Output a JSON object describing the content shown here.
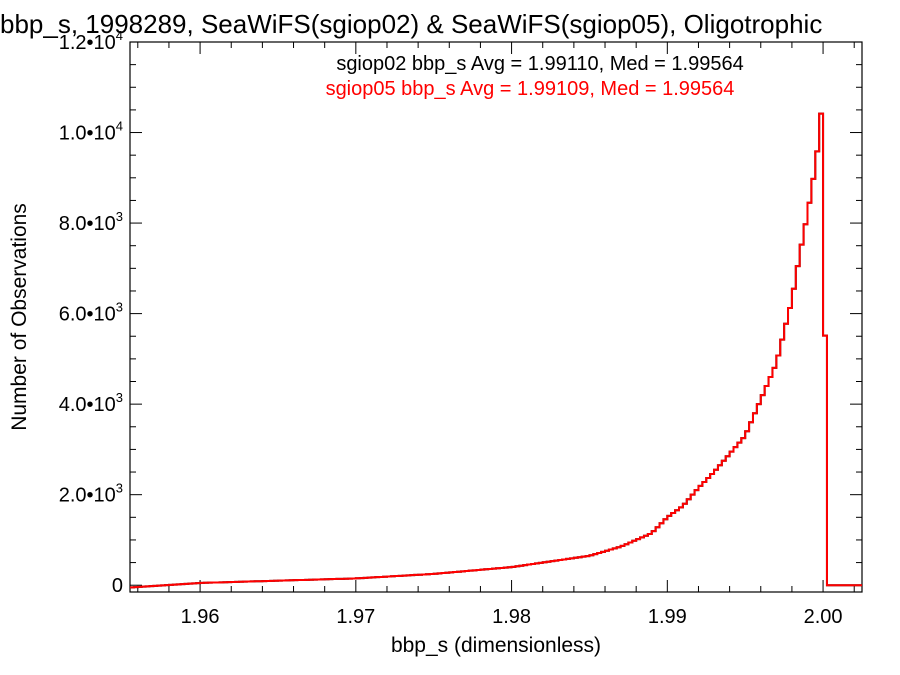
{
  "chart_data": {
    "type": "line",
    "title": "bbp_s, 1998289, SeaWiFS(sgiop02) & SeaWiFS(sgiop05), Oligotrophic",
    "xlabel": "bbp_s (dimensionless)",
    "ylabel": "Number of Observations",
    "xlim": [
      1.9555,
      2.0025
    ],
    "ylim": [
      -150,
      12000
    ],
    "x_ticks": [
      {
        "value": 1.96,
        "label": "1.96"
      },
      {
        "value": 1.97,
        "label": "1.97"
      },
      {
        "value": 1.98,
        "label": "1.98"
      },
      {
        "value": 1.99,
        "label": "1.99"
      },
      {
        "value": 2.0,
        "label": "2.00"
      }
    ],
    "y_ticks": [
      {
        "value": 0,
        "mantissa": "0",
        "exponent": ""
      },
      {
        "value": 2000,
        "mantissa": "2.0•10",
        "exponent": "3"
      },
      {
        "value": 4000,
        "mantissa": "4.0•10",
        "exponent": "3"
      },
      {
        "value": 6000,
        "mantissa": "6.0•10",
        "exponent": "3"
      },
      {
        "value": 8000,
        "mantissa": "8.0•10",
        "exponent": "3"
      },
      {
        "value": 10000,
        "mantissa": "1.0•10",
        "exponent": "4"
      },
      {
        "value": 12000,
        "mantissa": "1.2•10",
        "exponent": "4"
      }
    ],
    "grid": false,
    "legend_placement": "top-center",
    "annotations": [
      {
        "text": "sgiop02 bbp_s Avg = 1.99110, Med = 1.99564",
        "color": "#000000"
      },
      {
        "text": "sgiop05 bbp_s Avg = 1.99109, Med = 1.99564",
        "color": "#ff0000"
      }
    ],
    "series": [
      {
        "color": "#000000",
        "x": [
          1.9555,
          1.96,
          1.965,
          1.97,
          1.975,
          1.98,
          1.985,
          1.987,
          1.989,
          1.99,
          1.991,
          1.992,
          1.993,
          1.994,
          1.995,
          1.996,
          1.997,
          1.998,
          1.9985,
          1.999,
          1.9993,
          1.9996,
          1.9999,
          2.0001,
          2.0003,
          2.0025
        ],
        "y": [
          -50,
          50,
          100,
          150,
          250,
          400,
          650,
          850,
          1150,
          1500,
          1750,
          2150,
          2500,
          2900,
          3300,
          4100,
          4900,
          6300,
          7300,
          8200,
          8800,
          9500,
          10500,
          6300,
          0,
          0
        ]
      },
      {
        "color": "#ff0000",
        "x": [
          1.9555,
          1.96,
          1.965,
          1.97,
          1.975,
          1.98,
          1.985,
          1.987,
          1.989,
          1.99,
          1.991,
          1.992,
          1.993,
          1.994,
          1.995,
          1.996,
          1.997,
          1.998,
          1.9985,
          1.999,
          1.9993,
          1.9996,
          1.9999,
          2.0001,
          2.0003,
          2.0025
        ],
        "y": [
          -50,
          50,
          100,
          150,
          250,
          400,
          650,
          850,
          1150,
          1500,
          1750,
          2150,
          2500,
          2900,
          3300,
          4100,
          4900,
          6300,
          7300,
          8200,
          8800,
          9500,
          10500,
          6300,
          0,
          0
        ]
      }
    ]
  }
}
